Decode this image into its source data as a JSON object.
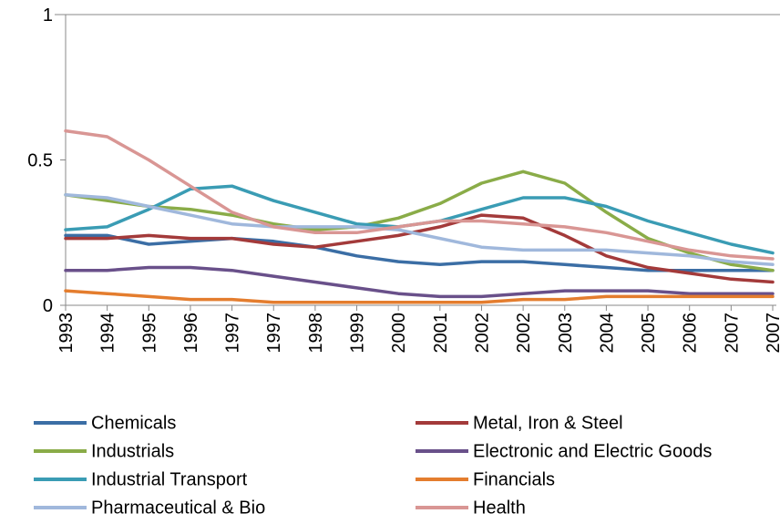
{
  "chart_data": {
    "type": "line",
    "categories": [
      "1993",
      "1994",
      "1995",
      "1996",
      "1997",
      "1997",
      "1998",
      "1999",
      "2000",
      "2001",
      "2002",
      "2002",
      "2003",
      "2004",
      "2005",
      "2006",
      "2007",
      "2007"
    ],
    "ylim": [
      0,
      1
    ],
    "yticks": [
      0,
      0.5,
      1
    ],
    "grid": false,
    "legend": "bottom",
    "series": [
      {
        "name": "Chemicals",
        "color": "#3b6ea5",
        "values": [
          0.24,
          0.24,
          0.21,
          0.22,
          0.23,
          0.22,
          0.2,
          0.17,
          0.15,
          0.14,
          0.15,
          0.15,
          0.14,
          0.13,
          0.12,
          0.12,
          0.12,
          0.12
        ]
      },
      {
        "name": "Metal, Iron & Steel",
        "color": "#a33a3a",
        "values": [
          0.23,
          0.23,
          0.24,
          0.23,
          0.23,
          0.21,
          0.2,
          0.22,
          0.24,
          0.27,
          0.31,
          0.3,
          0.24,
          0.17,
          0.13,
          0.11,
          0.09,
          0.08
        ]
      },
      {
        "name": "Industrials",
        "color": "#8aac48",
        "values": [
          0.38,
          0.36,
          0.34,
          0.33,
          0.31,
          0.28,
          0.26,
          0.27,
          0.3,
          0.35,
          0.42,
          0.46,
          0.42,
          0.32,
          0.23,
          0.18,
          0.14,
          0.12
        ]
      },
      {
        "name": "Electronic and Electric Goods",
        "color": "#69508a",
        "values": [
          0.12,
          0.12,
          0.13,
          0.13,
          0.12,
          0.1,
          0.08,
          0.06,
          0.04,
          0.03,
          0.03,
          0.04,
          0.05,
          0.05,
          0.05,
          0.04,
          0.04,
          0.04
        ]
      },
      {
        "name": "Industrial Transport",
        "color": "#3a9cb4",
        "values": [
          0.26,
          0.27,
          0.33,
          0.4,
          0.41,
          0.36,
          0.32,
          0.28,
          0.27,
          0.29,
          0.33,
          0.37,
          0.37,
          0.34,
          0.29,
          0.25,
          0.21,
          0.18
        ]
      },
      {
        "name": "Financials",
        "color": "#e47d2e",
        "values": [
          0.05,
          0.04,
          0.03,
          0.02,
          0.02,
          0.01,
          0.01,
          0.01,
          0.01,
          0.01,
          0.01,
          0.02,
          0.02,
          0.03,
          0.03,
          0.03,
          0.03,
          0.03
        ]
      },
      {
        "name": "Pharmaceutical & Bio",
        "color": "#a0b8dc",
        "values": [
          0.38,
          0.37,
          0.34,
          0.31,
          0.28,
          0.27,
          0.27,
          0.27,
          0.26,
          0.23,
          0.2,
          0.19,
          0.19,
          0.19,
          0.18,
          0.17,
          0.15,
          0.14
        ]
      },
      {
        "name": "Health",
        "color": "#d99694",
        "values": [
          0.6,
          0.58,
          0.5,
          0.41,
          0.32,
          0.27,
          0.25,
          0.25,
          0.27,
          0.29,
          0.29,
          0.28,
          0.27,
          0.25,
          0.22,
          0.19,
          0.17,
          0.16
        ]
      }
    ]
  }
}
